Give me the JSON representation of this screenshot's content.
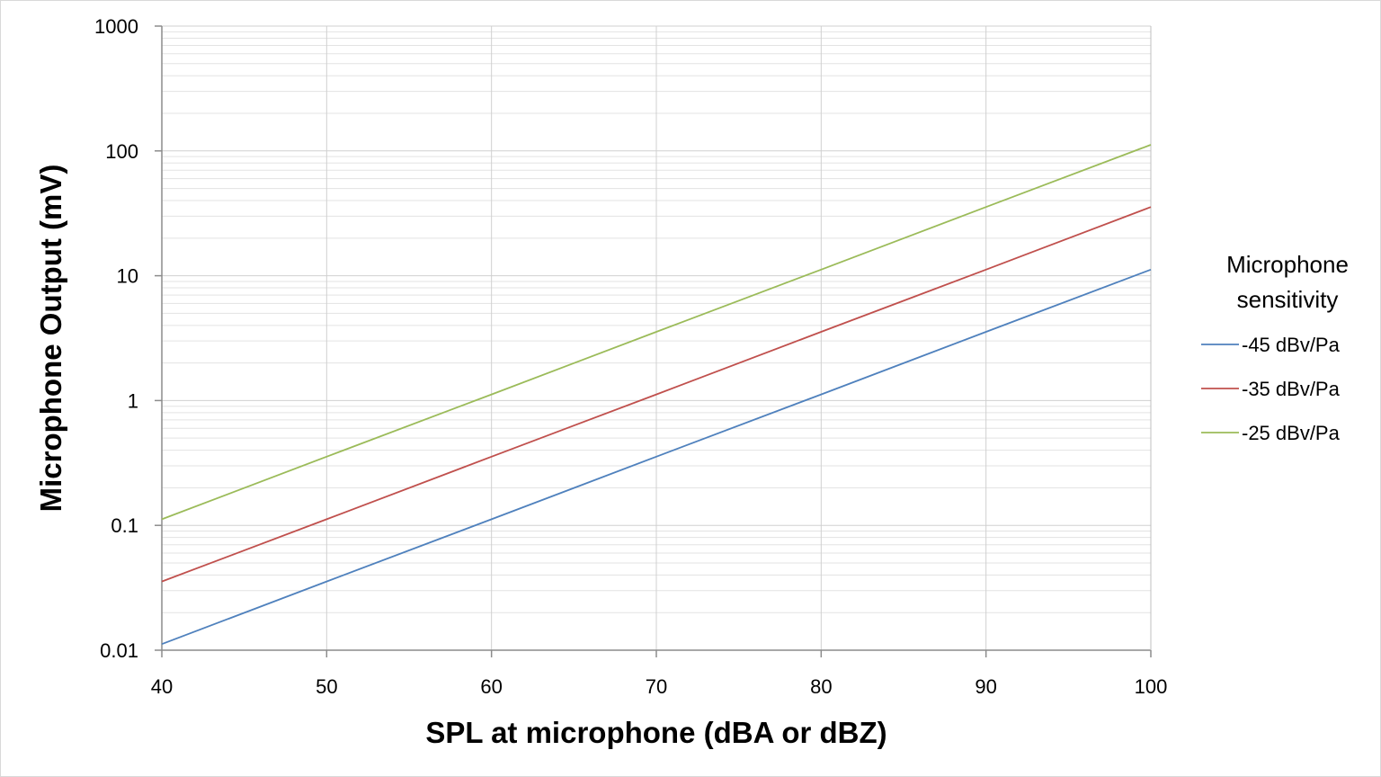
{
  "chart_data": {
    "type": "line",
    "title": "",
    "xlabel": "SPL at microphone (dBA or dBZ)",
    "ylabel": "Microphone Output (mV)",
    "xlim": [
      40,
      100
    ],
    "ylim": [
      0.01,
      1000
    ],
    "yscale": "log",
    "grid": true,
    "x_ticks": [
      "40",
      "50",
      "60",
      "70",
      "80",
      "90",
      "100"
    ],
    "y_ticks": [
      "0.01",
      "0.1",
      "1",
      "10",
      "100",
      "1000"
    ],
    "legend": {
      "title": "Microphone sensitivity",
      "title_lines": [
        "Microphone",
        "sensitivity"
      ],
      "position": "right"
    },
    "x": [
      40,
      50,
      60,
      70,
      80,
      90,
      100
    ],
    "series": [
      {
        "name": "-45 dBv/Pa",
        "color": "#4f81bd",
        "values": [
          0.0112,
          0.0355,
          0.112,
          0.355,
          1.12,
          3.55,
          11.2
        ]
      },
      {
        "name": "-35 dBv/Pa",
        "color": "#c0504d",
        "values": [
          0.0355,
          0.112,
          0.355,
          1.12,
          3.55,
          11.2,
          35.5
        ]
      },
      {
        "name": "-25 dBv/Pa",
        "color": "#9bbb59",
        "values": [
          0.112,
          0.355,
          1.12,
          3.55,
          11.2,
          35.5,
          112
        ]
      }
    ]
  }
}
